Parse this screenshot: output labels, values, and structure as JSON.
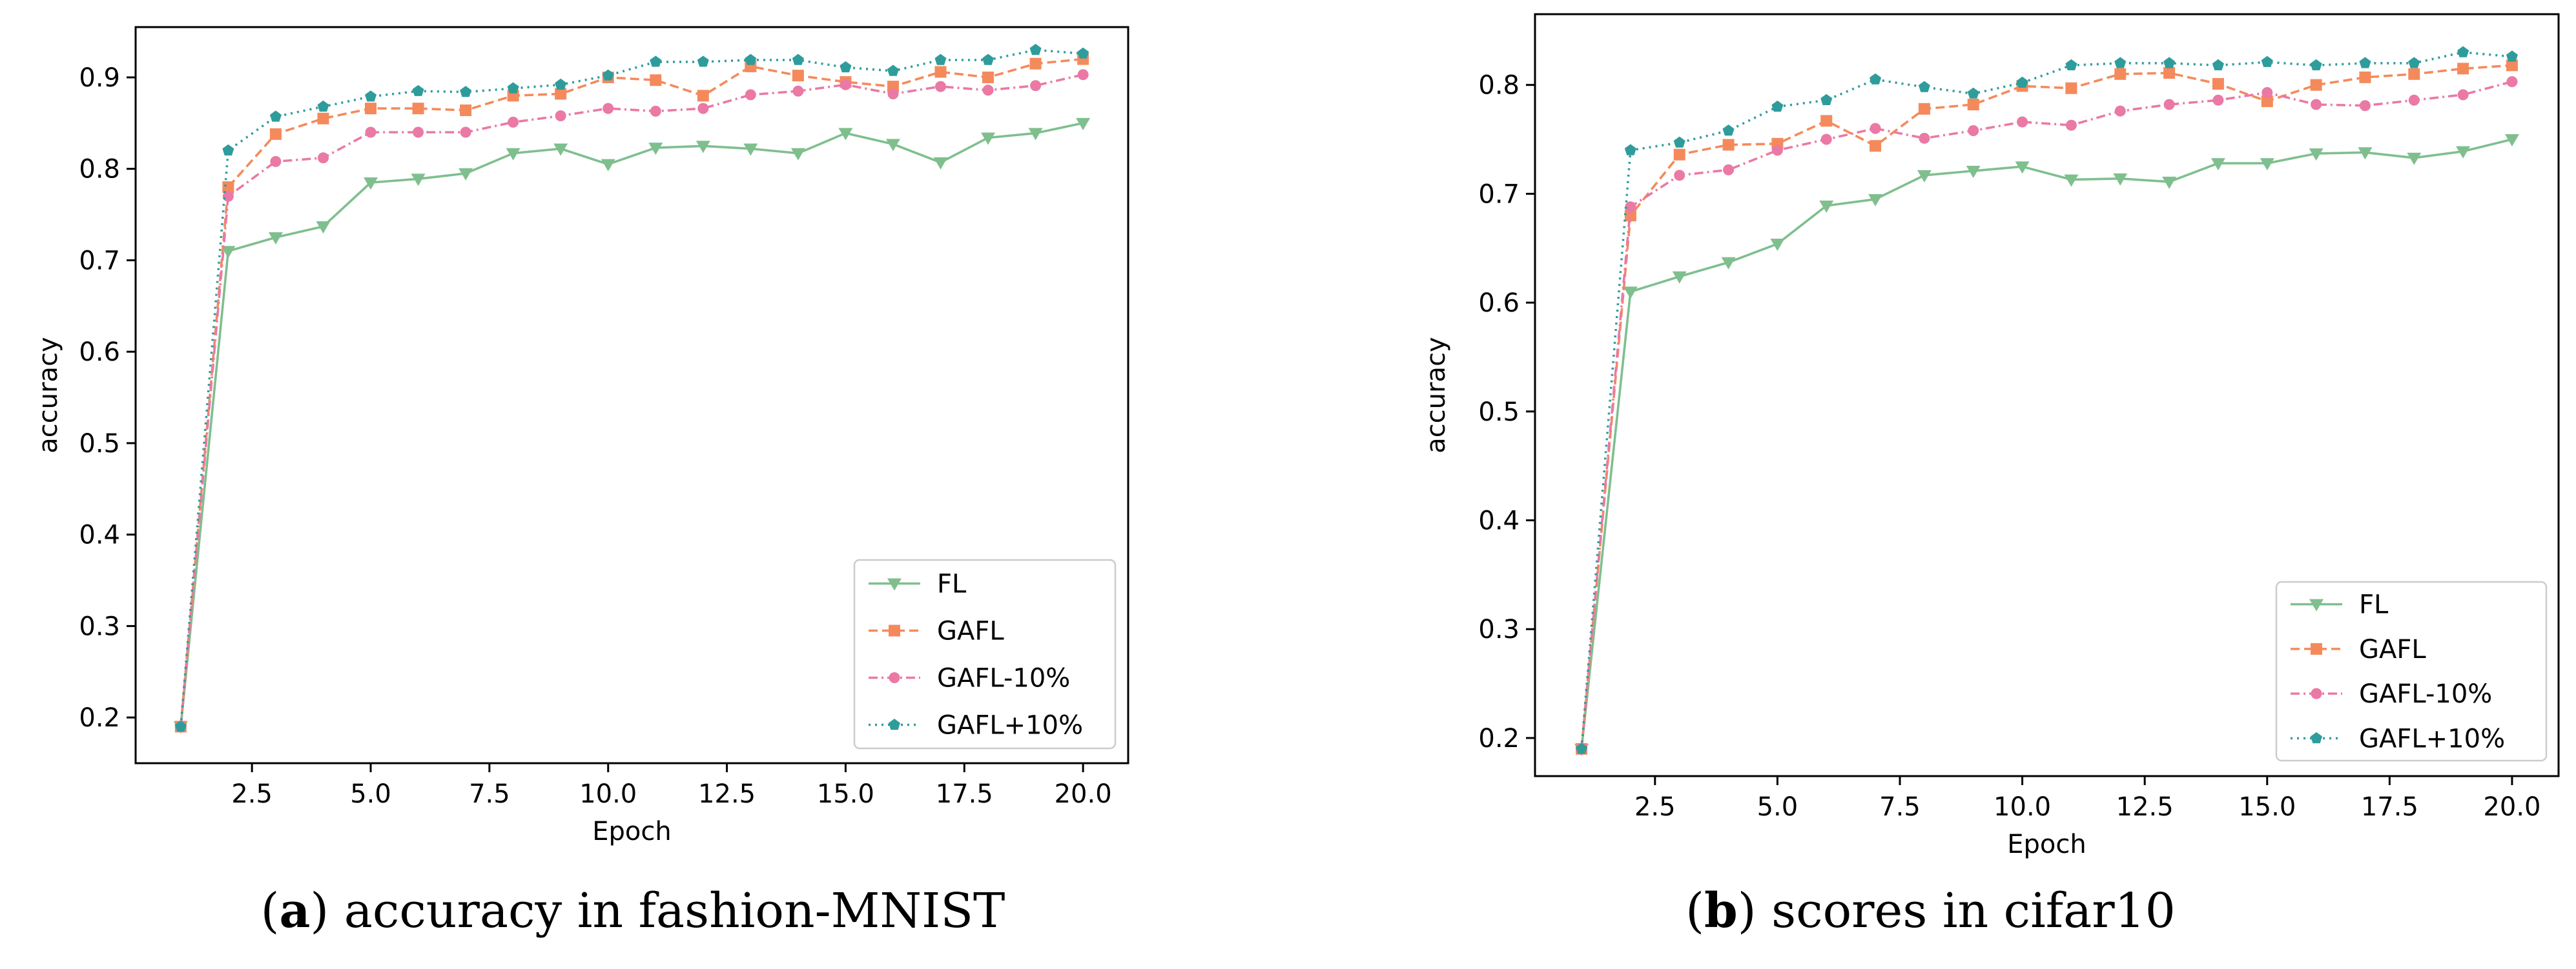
{
  "colors": {
    "FL": "#7fbf8e",
    "GAFL": "#f48a5c",
    "GAFL-10%": "#ea79a6",
    "GAFL+10%": "#2f9c9c",
    "axis": "#000000"
  },
  "captions": [
    {
      "letter": "a",
      "open": "(",
      "close": ")",
      "text": " accuracy in fashion-MNIST"
    },
    {
      "letter": "b",
      "open": "(",
      "close": ")",
      "text": " scores in cifar10"
    }
  ],
  "chart_data": [
    {
      "type": "line",
      "xlabel": "Epoch",
      "ylabel": "accuracy",
      "xlim": [
        0.05,
        20.95
      ],
      "ylim": [
        0.15,
        0.955
      ],
      "xticks": [
        2.5,
        5.0,
        7.5,
        10.0,
        12.5,
        15.0,
        17.5,
        20.0
      ],
      "xtick_labels": [
        "2.5",
        "5.0",
        "7.5",
        "10.0",
        "12.5",
        "15.0",
        "17.5",
        "20.0"
      ],
      "yticks": [
        0.2,
        0.3,
        0.4,
        0.5,
        0.6,
        0.7,
        0.8,
        0.9
      ],
      "ytick_labels": [
        "0.2",
        "0.3",
        "0.4",
        "0.5",
        "0.6",
        "0.7",
        "0.8",
        "0.9"
      ],
      "grid": false,
      "legend_position": "lower-right",
      "x": [
        1,
        2,
        3,
        4,
        5,
        6,
        7,
        8,
        9,
        10,
        11,
        12,
        13,
        14,
        15,
        16,
        17,
        18,
        19,
        20
      ],
      "series": [
        {
          "name": "FL",
          "marker": "triangle-down",
          "dash": "solid",
          "values": [
            0.19,
            0.71,
            0.725,
            0.737,
            0.785,
            0.789,
            0.795,
            0.817,
            0.822,
            0.805,
            0.823,
            0.825,
            0.822,
            0.817,
            0.839,
            0.827,
            0.807,
            0.834,
            0.839,
            0.85
          ]
        },
        {
          "name": "GAFL",
          "marker": "square",
          "dash": "dashed",
          "values": [
            0.19,
            0.78,
            0.838,
            0.855,
            0.866,
            0.866,
            0.864,
            0.88,
            0.882,
            0.9,
            0.897,
            0.88,
            0.912,
            0.902,
            0.895,
            0.89,
            0.906,
            0.9,
            0.915,
            0.92
          ]
        },
        {
          "name": "GAFL-10%",
          "marker": "circle",
          "dash": "dashdot",
          "values": [
            0.19,
            0.77,
            0.808,
            0.812,
            0.84,
            0.84,
            0.84,
            0.851,
            0.858,
            0.866,
            0.863,
            0.866,
            0.881,
            0.885,
            0.892,
            0.882,
            0.89,
            0.886,
            0.891,
            0.903
          ]
        },
        {
          "name": "GAFL+10%",
          "marker": "pentagon",
          "dash": "dotted",
          "values": [
            0.19,
            0.82,
            0.857,
            0.868,
            0.879,
            0.885,
            0.884,
            0.888,
            0.892,
            0.902,
            0.917,
            0.917,
            0.919,
            0.919,
            0.911,
            0.907,
            0.919,
            0.919,
            0.93,
            0.926
          ]
        }
      ]
    },
    {
      "type": "line",
      "xlabel": "Epoch",
      "ylabel": "accuracy",
      "xlim": [
        0.05,
        20.95
      ],
      "ylim": [
        0.165,
        0.865
      ],
      "xticks": [
        2.5,
        5.0,
        7.5,
        10.0,
        12.5,
        15.0,
        17.5,
        20.0
      ],
      "xtick_labels": [
        "2.5",
        "5.0",
        "7.5",
        "10.0",
        "12.5",
        "15.0",
        "17.5",
        "20.0"
      ],
      "yticks": [
        0.2,
        0.3,
        0.4,
        0.5,
        0.6,
        0.7,
        0.8
      ],
      "ytick_labels": [
        "0.2",
        "0.3",
        "0.4",
        "0.5",
        "0.6",
        "0.7",
        "0.8"
      ],
      "grid": false,
      "legend_position": "lower-right",
      "x": [
        1,
        2,
        3,
        4,
        5,
        6,
        7,
        8,
        9,
        10,
        11,
        12,
        13,
        14,
        15,
        16,
        17,
        18,
        19,
        20
      ],
      "series": [
        {
          "name": "FL",
          "marker": "triangle-down",
          "dash": "solid",
          "values": [
            0.19,
            0.61,
            0.624,
            0.637,
            0.654,
            0.689,
            0.695,
            0.717,
            0.721,
            0.725,
            0.713,
            0.714,
            0.711,
            0.728,
            0.728,
            0.737,
            0.738,
            0.733,
            0.739,
            0.75
          ]
        },
        {
          "name": "GAFL",
          "marker": "square",
          "dash": "dashed",
          "values": [
            0.19,
            0.68,
            0.736,
            0.745,
            0.746,
            0.767,
            0.744,
            0.778,
            0.782,
            0.799,
            0.797,
            0.81,
            0.811,
            0.801,
            0.785,
            0.8,
            0.807,
            0.81,
            0.815,
            0.818
          ]
        },
        {
          "name": "GAFL-10%",
          "marker": "circle",
          "dash": "dashdot",
          "values": [
            0.19,
            0.688,
            0.717,
            0.722,
            0.74,
            0.75,
            0.76,
            0.751,
            0.758,
            0.766,
            0.763,
            0.776,
            0.782,
            0.786,
            0.793,
            0.782,
            0.781,
            0.786,
            0.791,
            0.803
          ]
        },
        {
          "name": "GAFL+10%",
          "marker": "pentagon",
          "dash": "dotted",
          "values": [
            0.19,
            0.74,
            0.747,
            0.758,
            0.78,
            0.786,
            0.805,
            0.798,
            0.792,
            0.802,
            0.818,
            0.82,
            0.82,
            0.818,
            0.821,
            0.818,
            0.82,
            0.82,
            0.83,
            0.826
          ]
        }
      ]
    }
  ]
}
